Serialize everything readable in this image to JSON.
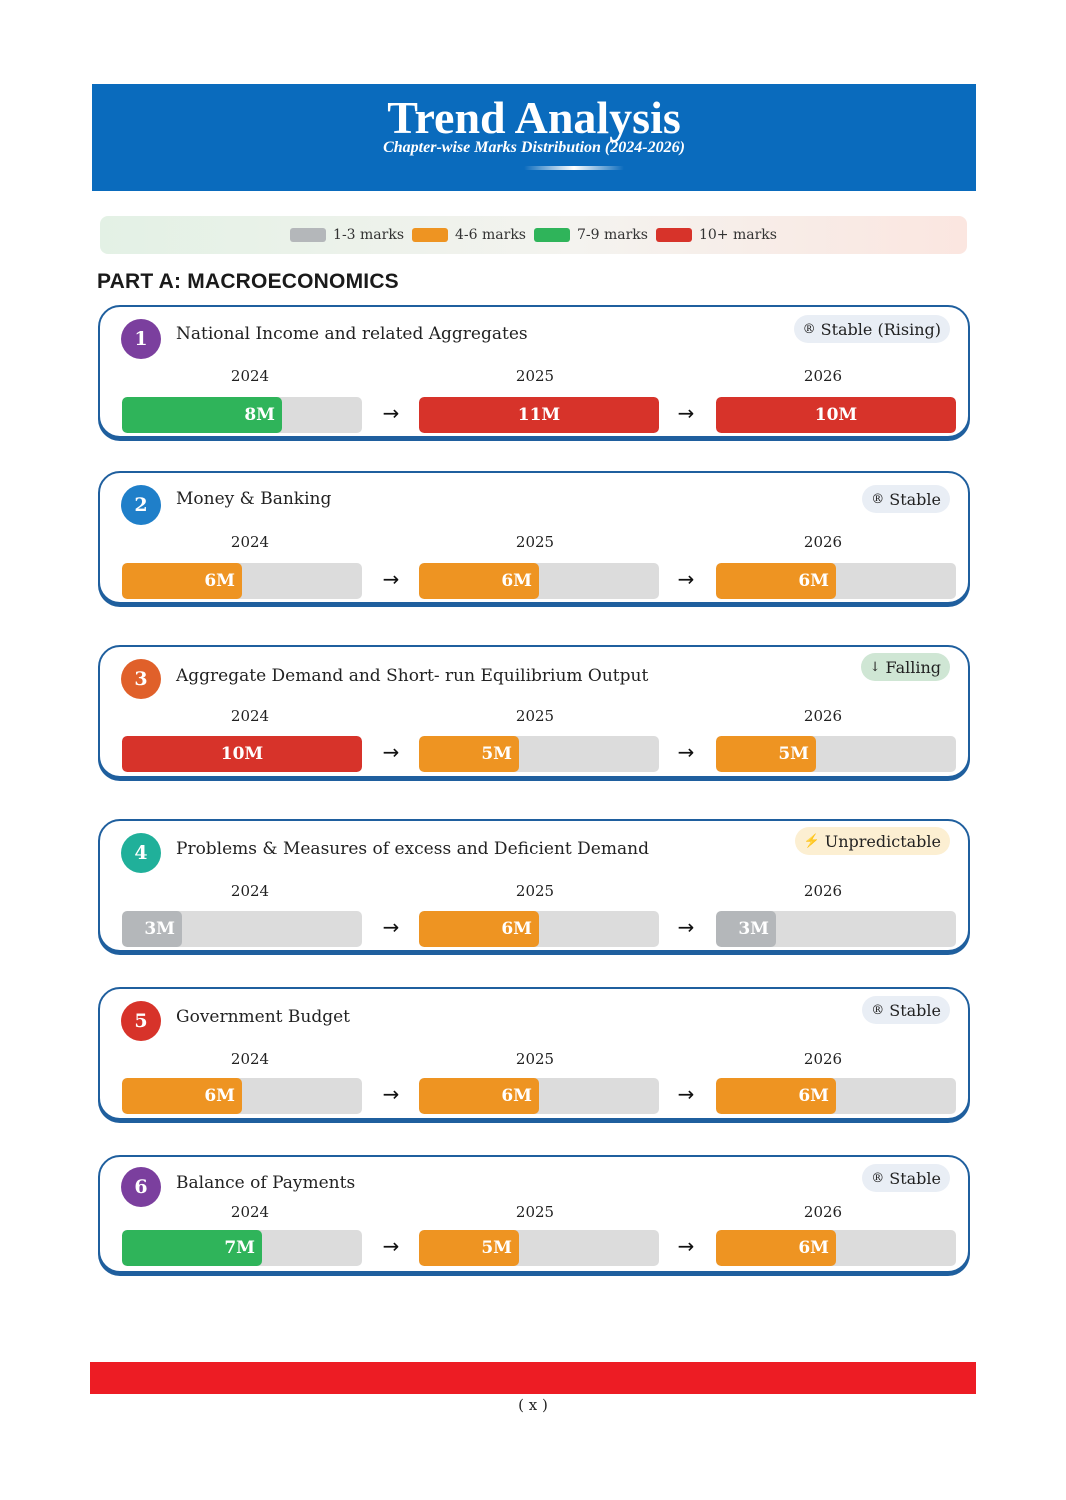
{
  "header": {
    "title": "Trend Analysis",
    "subtitle": "Chapter-wise Marks Distribution (2024-2026)"
  },
  "legend": [
    {
      "label": "1-3 marks",
      "color": "#b4b7ba"
    },
    {
      "label": "4-6 marks",
      "color": "#ee9422"
    },
    {
      "label": "7-9 marks",
      "color": "#2fb45a"
    },
    {
      "label": "10+ marks",
      "color": "#d7332a"
    }
  ],
  "part_title": "PART A: MACROECONOMICS",
  "arrow_glyph": "→",
  "max_marks": 12,
  "chapters": [
    {
      "number": "1",
      "title": "National Income and related Aggregates",
      "badge_color": "#7b3f9e",
      "trend": {
        "label": "Stable (Rising)",
        "icon": "®",
        "icon_name": "registered-icon",
        "style": "stable"
      },
      "years": [
        {
          "year": "2024",
          "marks": 8,
          "label": "8M",
          "color": "#2fb45a"
        },
        {
          "year": "2025",
          "marks": 11,
          "label": "11M",
          "color": "#d7332a"
        },
        {
          "year": "2026",
          "marks": 10,
          "label": "10M",
          "color": "#d7332a"
        }
      ]
    },
    {
      "number": "2",
      "title": "Money & Banking",
      "badge_color": "#1f7fc9",
      "trend": {
        "label": "Stable",
        "icon": "®",
        "icon_name": "registered-icon",
        "style": "stable"
      },
      "years": [
        {
          "year": "2024",
          "marks": 6,
          "label": "6M",
          "color": "#ee9422"
        },
        {
          "year": "2025",
          "marks": 6,
          "label": "6M",
          "color": "#ee9422"
        },
        {
          "year": "2026",
          "marks": 6,
          "label": "6M",
          "color": "#ee9422"
        }
      ]
    },
    {
      "number": "3",
      "title": "Aggregate Demand and Short- run Equilibrium Output",
      "badge_color": "#e0602a",
      "trend": {
        "label": "Falling",
        "icon": "↓",
        "icon_name": "down-arrow-icon",
        "style": "falling"
      },
      "years": [
        {
          "year": "2024",
          "marks": 10,
          "label": "10M",
          "color": "#d7332a"
        },
        {
          "year": "2025",
          "marks": 5,
          "label": "5M",
          "color": "#ee9422"
        },
        {
          "year": "2026",
          "marks": 5,
          "label": "5M",
          "color": "#ee9422"
        }
      ]
    },
    {
      "number": "4",
      "title": "Problems & Measures of excess and Deficient Demand",
      "badge_color": "#20b09a",
      "trend": {
        "label": "Unpredictable",
        "icon": "⚡",
        "icon_name": "lightning-icon",
        "style": "unpredictable"
      },
      "years": [
        {
          "year": "2024",
          "marks": 3,
          "label": "3M",
          "color": "#b4b7ba"
        },
        {
          "year": "2025",
          "marks": 6,
          "label": "6M",
          "color": "#ee9422"
        },
        {
          "year": "2026",
          "marks": 3,
          "label": "3M",
          "color": "#b4b7ba"
        }
      ]
    },
    {
      "number": "5",
      "title": "Government Budget",
      "badge_color": "#d7332a",
      "trend": {
        "label": "Stable",
        "icon": "®",
        "icon_name": "registered-icon",
        "style": "stable"
      },
      "years": [
        {
          "year": "2024",
          "marks": 6,
          "label": "6M",
          "color": "#ee9422"
        },
        {
          "year": "2025",
          "marks": 6,
          "label": "6M",
          "color": "#ee9422"
        },
        {
          "year": "2026",
          "marks": 6,
          "label": "6M",
          "color": "#ee9422"
        }
      ]
    },
    {
      "number": "6",
      "title": "Balance of Payments",
      "badge_color": "#7b3f9e",
      "trend": {
        "label": "Stable",
        "icon": "®",
        "icon_name": "registered-icon",
        "style": "stable"
      },
      "years": [
        {
          "year": "2024",
          "marks": 7,
          "label": "7M",
          "color": "#2fb45a"
        },
        {
          "year": "2025",
          "marks": 5,
          "label": "5M",
          "color": "#ee9422"
        },
        {
          "year": "2026",
          "marks": 6,
          "label": "6M",
          "color": "#ee9422"
        }
      ]
    }
  ],
  "page_number": "( x )"
}
